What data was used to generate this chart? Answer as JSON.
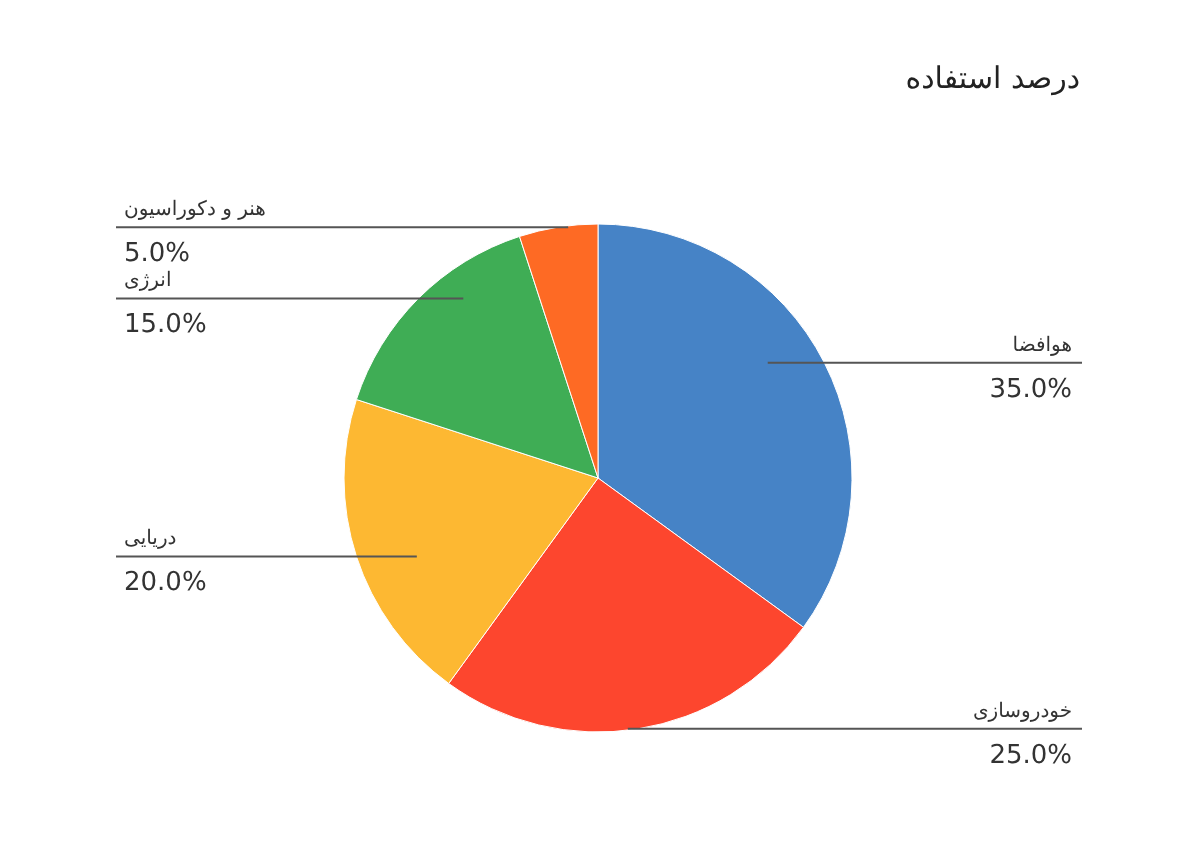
{
  "chart_data": {
    "type": "pie",
    "title": "درصد استفاده",
    "categories": [
      "هوافضا",
      "خودروسازی",
      "دریایی",
      "انرژی",
      "هنر و دکوراسیون"
    ],
    "values": [
      35,
      25,
      20,
      15,
      5
    ],
    "value_labels": [
      "35.0%",
      "25.0%",
      "20.0%",
      "15.0%",
      "5.0%"
    ],
    "colors": [
      "#4683c6",
      "#fd462e",
      "#fdb832",
      "#3fad55",
      "#fe6a24"
    ]
  }
}
